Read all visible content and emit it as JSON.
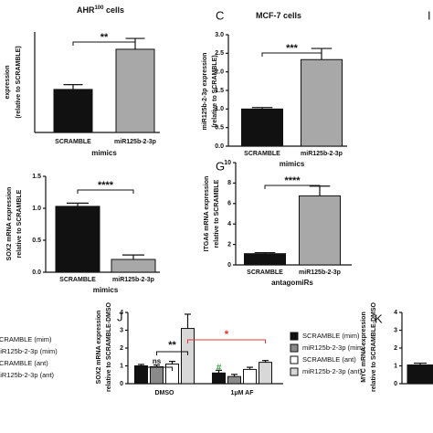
{
  "chart_data": [
    {
      "type": "bar",
      "title": "AHR",
      "title_superscript": "100",
      "title_suffix": " cells",
      "ylabel": [
        "expression",
        "(relative to SCRAMBLE)"
      ],
      "categories": [
        "SCRAMBLE",
        "miR125b-2-3p"
      ],
      "values": [
        1.07,
        2.07
      ],
      "errors": [
        0.12,
        0.27
      ],
      "colors": [
        "#111111",
        "#a8a8a8"
      ],
      "xlabel": "mimics",
      "significance": "**",
      "ylim": [
        0,
        2.5
      ]
    },
    {
      "type": "bar",
      "panel_label": "C",
      "title": "MCF-7 cells",
      "ylabel": [
        "miR125b-2-3p expression",
        "(relative to SCRAMBLE)"
      ],
      "categories": [
        "SCRAMBLE",
        "miR125b-2-3p"
      ],
      "values": [
        1.0,
        2.33
      ],
      "errors": [
        0.04,
        0.3
      ],
      "colors": [
        "#111111",
        "#a8a8a8"
      ],
      "xlabel": "mimics",
      "significance": "***",
      "ylim": [
        0,
        3.0
      ],
      "yticks": [
        {
          "value": 0,
          "label": "0.0"
        },
        {
          "value": 0.5,
          "label": "0.5"
        },
        {
          "value": 1,
          "label": "1.0"
        },
        {
          "value": 1.5,
          "label": "1.5"
        },
        {
          "value": 2,
          "label": "2.0"
        },
        {
          "value": 2.5,
          "label": "2.5"
        },
        {
          "value": 3,
          "label": "3.0"
        }
      ]
    },
    {
      "type": "bar",
      "ylabel": [
        "SOX2 mRNA expression",
        "relative to SCRAMBLE"
      ],
      "categories": [
        "SCRAMBLE",
        "miR125b-2-3p"
      ],
      "values": [
        1.03,
        0.2
      ],
      "errors": [
        0.05,
        0.07
      ],
      "colors": [
        "#111111",
        "#a8a8a8"
      ],
      "xlabel": "mimics",
      "significance": "****",
      "ylim": [
        0,
        1.5
      ],
      "yticks": [
        {
          "value": 0,
          "label": "0.0"
        },
        {
          "value": 0.5,
          "label": "0.5"
        },
        {
          "value": 1,
          "label": "1.0"
        },
        {
          "value": 1.5,
          "label": "1.5"
        }
      ]
    },
    {
      "type": "bar",
      "panel_label": "G",
      "ylabel": [
        "ITGA6 mRNA expression",
        "relative to SCRAMBLE"
      ],
      "categories": [
        "SCRAMBLE",
        "miR125b-2-3p"
      ],
      "values": [
        1.1,
        6.75
      ],
      "errors": [
        0.1,
        0.95
      ],
      "colors": [
        "#111111",
        "#a8a8a8"
      ],
      "xlabel": "antagomiRs",
      "significance": "****",
      "ylim": [
        0,
        10
      ],
      "yticks": [
        0,
        2,
        4,
        6,
        8,
        10
      ]
    },
    {
      "type": "grouped",
      "panel_label": "J",
      "ylabel": [
        "SOX2 mRNA expression",
        "relative to SCRAMBLE-DMSO"
      ],
      "categories": [
        "DMSO",
        "1μM AF"
      ],
      "ylim": [
        0,
        4
      ],
      "yticks": [
        0,
        1,
        2,
        3,
        4
      ],
      "series": [
        {
          "name": "SCRAMBLE (mim)",
          "color": "#111111",
          "values": [
            1.0,
            0.6
          ],
          "errors": [
            0.08,
            0.15
          ]
        },
        {
          "name": "miR125b-2-3p (mim)",
          "color": "#8a8a8a",
          "values": [
            0.95,
            0.4
          ],
          "errors": [
            0.1,
            0.12
          ]
        },
        {
          "name": "SCRAMBLE (ant)",
          "color": "#ffffff",
          "values": [
            1.1,
            0.8
          ],
          "errors": [
            0.15,
            0.12
          ]
        },
        {
          "name": "miR125b-2-3p (ant)",
          "color": "#d8d8d8",
          "values": [
            3.1,
            1.2
          ],
          "errors": [
            0.8,
            0.1
          ]
        }
      ],
      "annotations": [
        {
          "text": "ns",
          "color": "#111111"
        },
        {
          "text": "**",
          "color": "#111111"
        },
        {
          "text": "*",
          "color": "#e53935"
        },
        {
          "text": "#",
          "color": "#3a9d3a"
        }
      ]
    },
    {
      "type": "bar",
      "panel_label": "K",
      "ylabel": [
        "MYC mRNA expression",
        "relative to SCRAMBLE-DMSO"
      ],
      "categories": [
        null
      ],
      "values": [
        1.05
      ],
      "errors": [
        0.1
      ],
      "colors": [
        "#111111"
      ],
      "ylim": [
        0,
        4
      ],
      "yticks": [
        0,
        1,
        2,
        3,
        4
      ]
    }
  ]
}
